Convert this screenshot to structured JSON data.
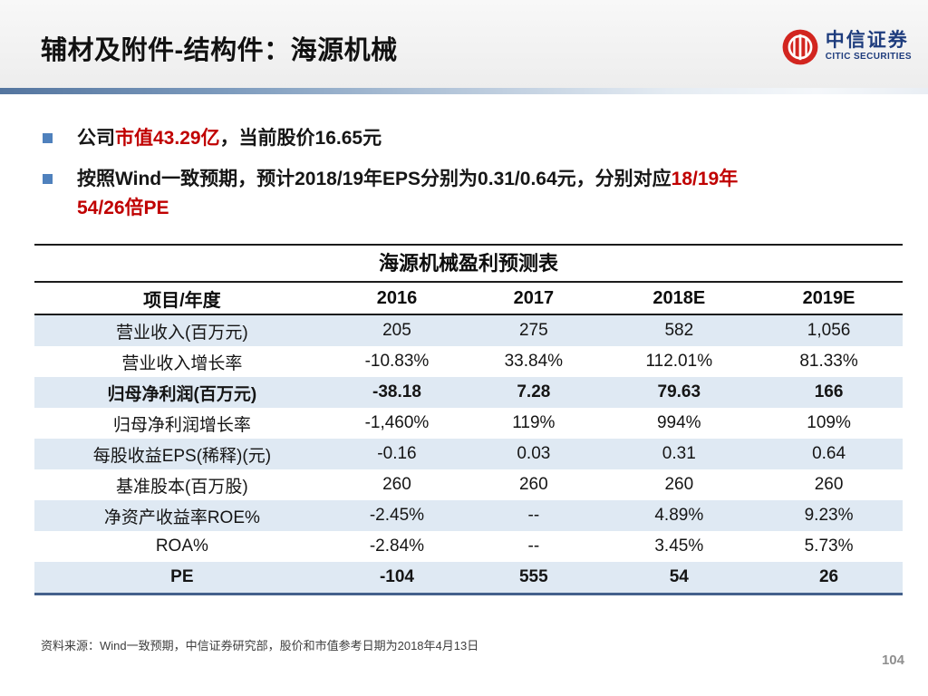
{
  "header": {
    "title": "辅材及附件-结构件：海源机械",
    "logo": {
      "cn": "中信证券",
      "en": "CITIC SECURITIES"
    }
  },
  "bullets": [
    {
      "segments": [
        {
          "text": "公司",
          "red": false
        },
        {
          "text": "市值43.29亿",
          "red": true
        },
        {
          "text": "，当前股价16.65元",
          "red": false
        }
      ]
    },
    {
      "segments": [
        {
          "text": "按照Wind一致预期，预计2018/19年EPS分别为0.31/0.64元，分别对应",
          "red": false
        },
        {
          "text": "18/19年\n54/26倍PE",
          "red": true
        }
      ]
    }
  ],
  "table": {
    "title": "海源机械盈利预测表",
    "columns": [
      "项目/年度",
      "2016",
      "2017",
      "2018E",
      "2019E"
    ],
    "rows": [
      {
        "label": "营业收入(百万元)",
        "values": [
          "205",
          "275",
          "582",
          "1,056"
        ],
        "bold": false
      },
      {
        "label": "营业收入增长率",
        "values": [
          "-10.83%",
          "33.84%",
          "112.01%",
          "81.33%"
        ],
        "bold": false
      },
      {
        "label": "归母净利润(百万元)",
        "values": [
          "-38.18",
          "7.28",
          "79.63",
          "166"
        ],
        "bold": true
      },
      {
        "label": "归母净利润增长率",
        "values": [
          "-1,460%",
          "119%",
          "994%",
          "109%"
        ],
        "bold": false
      },
      {
        "label": "每股收益EPS(稀释)(元)",
        "values": [
          "-0.16",
          "0.03",
          "0.31",
          "0.64"
        ],
        "bold": false
      },
      {
        "label": "基准股本(百万股)",
        "values": [
          "260",
          "260",
          "260",
          "260"
        ],
        "bold": false
      },
      {
        "label": "净资产收益率ROE%",
        "values": [
          "-2.45%",
          "--",
          "4.89%",
          "9.23%"
        ],
        "bold": false
      },
      {
        "label": "ROA%",
        "values": [
          "-2.84%",
          "--",
          "3.45%",
          "5.73%"
        ],
        "bold": false
      },
      {
        "label": "PE",
        "values": [
          "-104",
          "555",
          "54",
          "26"
        ],
        "bold": true
      }
    ]
  },
  "footer": {
    "source": "资料来源：Wind一致预期，中信证券研究部，股价和市值参考日期为2018年4月13日",
    "page_number": "104"
  },
  "colors": {
    "accent_red": "#c00000",
    "bullet_blue": "#4f81bd",
    "row_alt_bg": "#dfe9f3",
    "logo_red": "#d2251f",
    "logo_blue": "#1e3c7d",
    "table_bottom_border": "#44618c"
  }
}
